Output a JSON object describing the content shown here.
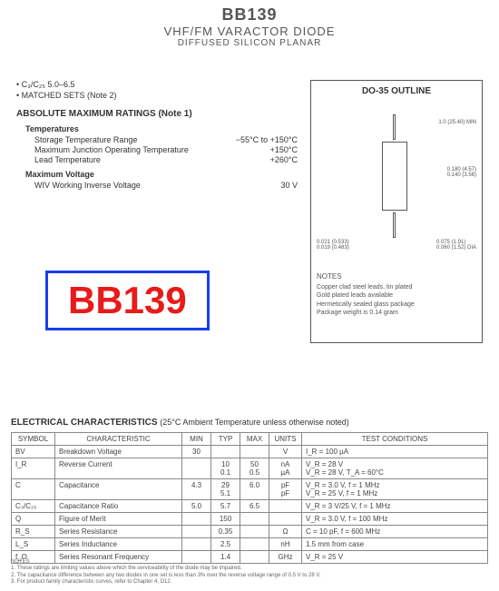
{
  "header": {
    "part_number": "BB139",
    "line1": "VHF/FM VARACTOR DIODE",
    "line2": "DIFFUSED SILICON PLANAR"
  },
  "bullets": {
    "b1": "C₃/C₂₅    5.0–6.5",
    "b2": "MATCHED SETS (Note 2)"
  },
  "amr": {
    "title": "ABSOLUTE MAXIMUM RATINGS (Note 1)",
    "temps_head": "Temperatures",
    "storage_l": "Storage Temperature Range",
    "storage_v": "−55°C to +150°C",
    "junction_l": "Maximum Junction Operating Temperature",
    "junction_v": "+150°C",
    "lead_l": "Lead Temperature",
    "lead_v": "+260°C",
    "volt_head": "Maximum Voltage",
    "wiv_l": "WIV        Working Inverse Voltage",
    "wiv_v": "30 V"
  },
  "outline": {
    "title": "DO-35 OUTLINE",
    "dim_top": "1.0 (25.40) MIN",
    "dim_body": "0.180 (4.57)\n0.140 (3.56)",
    "dim_lead": "0.021 (0.533)\n0.019 (0.483)",
    "dim_dia": "0.075 (1.91)\n0.060 (1.52) DIA",
    "notes_head": "NOTES",
    "n1": "Copper clad steel leads, tin plated",
    "n2": "Gold plated leads available",
    "n3": "Hermetically sealed glass package",
    "n4": "Package weight is 0.14 gram"
  },
  "badge": "BB139",
  "ec": {
    "title": "ELECTRICAL CHARACTERISTICS",
    "cond": "(25°C Ambient Temperature unless otherwise noted)",
    "headers": {
      "sym": "SYMBOL",
      "char": "CHARACTERISTIC",
      "min": "MIN",
      "typ": "TYP",
      "max": "MAX",
      "units": "UNITS",
      "test": "TEST CONDITIONS"
    },
    "rows": [
      {
        "sym": "BV",
        "char": "Breakdown Voltage",
        "min": "30",
        "typ": "",
        "max": "",
        "units": "V",
        "test": "I_R = 100 µA"
      },
      {
        "sym": "I_R",
        "char": "Reverse Current",
        "min": "",
        "typ": "10\n0.1",
        "max": "50\n0.5",
        "units": "nA\nµA",
        "test": "V_R = 28 V\nV_R = 28 V, T_A = 60°C"
      },
      {
        "sym": "C",
        "char": "Capacitance",
        "min": "4.3",
        "typ": "29\n5.1",
        "max": "6.0",
        "units": "pF\npF",
        "test": "V_R = 3.0 V, f = 1 MHz\nV_R = 25 V, f = 1 MHz"
      },
      {
        "sym": "C₃/C₂₅",
        "char": "Capacitance Ratio",
        "min": "5.0",
        "typ": "5.7",
        "max": "6.5",
        "units": "",
        "test": "V_R = 3 V/25 V, f = 1 MHz"
      },
      {
        "sym": "Q",
        "char": "Figure of Merit",
        "min": "",
        "typ": "150",
        "max": "",
        "units": "",
        "test": "V_R = 3.0 V, f = 100 MHz"
      },
      {
        "sym": "R_S",
        "char": "Series Resistance",
        "min": "",
        "typ": "0.35",
        "max": "",
        "units": "Ω",
        "test": "C = 10 pF, f = 600 MHz"
      },
      {
        "sym": "L_S",
        "char": "Series Inductance",
        "min": "",
        "typ": "2.5",
        "max": "",
        "units": "nH",
        "test": "1.5 mm from case"
      },
      {
        "sym": "f_O",
        "char": "Series Resonant Frequency",
        "min": "",
        "typ": "1.4",
        "max": "",
        "units": "GHz",
        "test": "V_R = 25 V"
      }
    ]
  },
  "footnotes": {
    "head": "NOTES",
    "n1": "1. These ratings are limiting values above which the serviceability of the diode may be impaired.",
    "n2": "2. The capacitance difference between any two diodes in one set is less than 3% over the reverse voltage range of 0.5 V to 28 V.",
    "n3": "3. For product family characteristic curves, refer to Chapter 4, D12."
  }
}
